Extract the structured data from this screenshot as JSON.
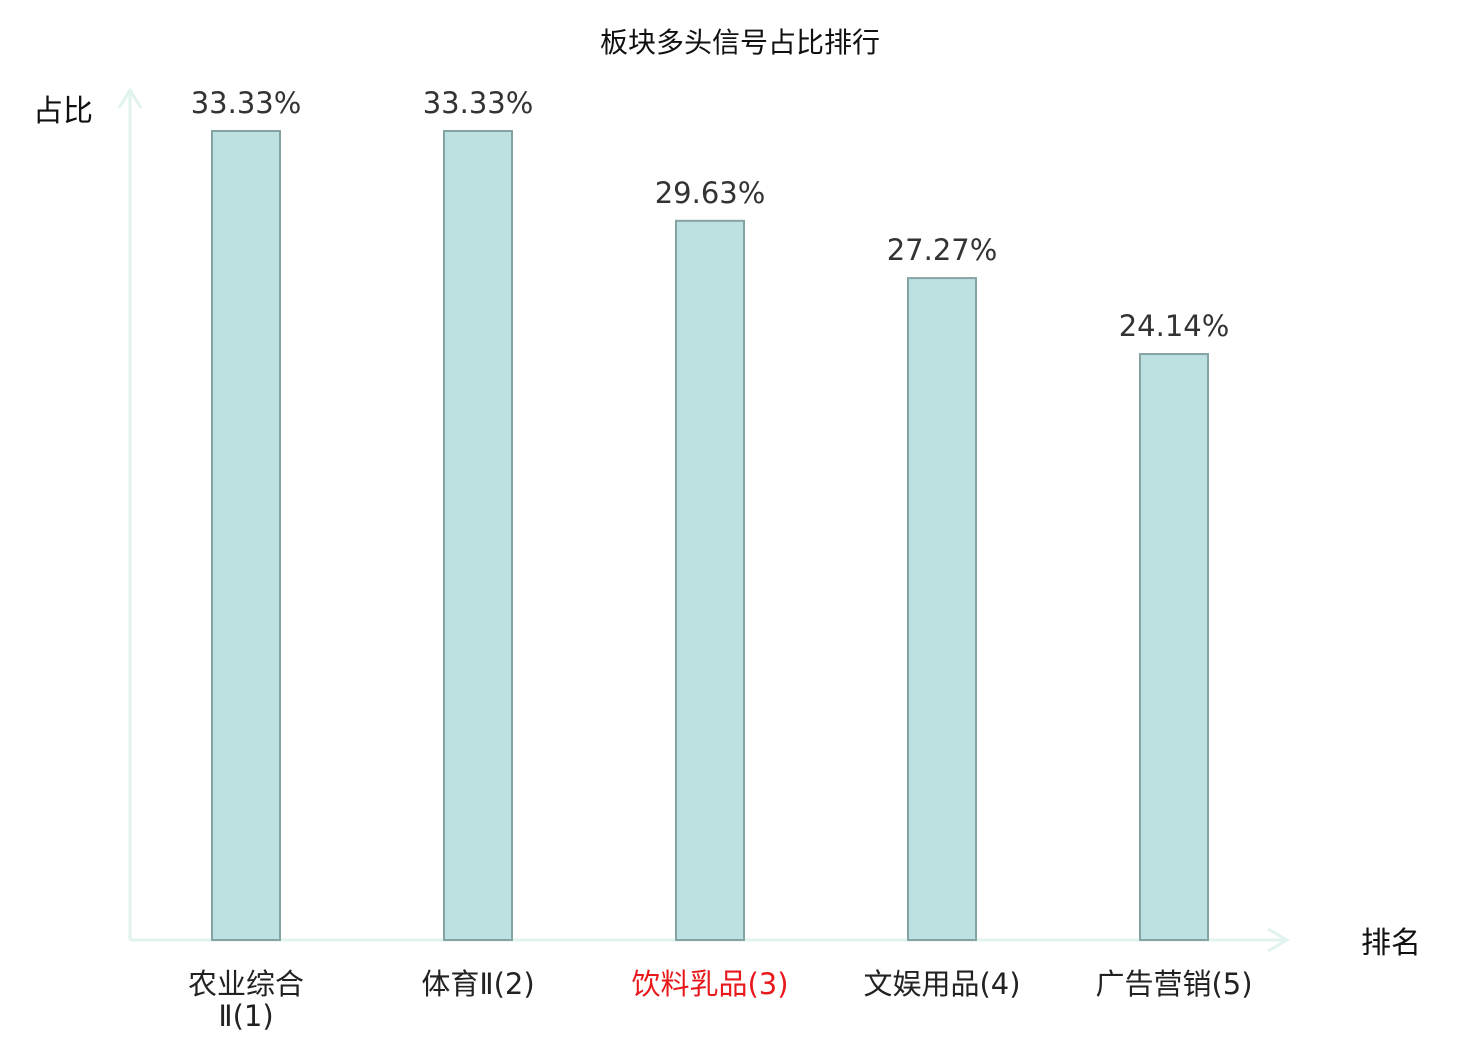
{
  "chart_data": {
    "type": "bar",
    "title": "板块多头信号占比排行",
    "ylabel": "占比",
    "xlabel": "排名",
    "categories": [
      [
        "农业综合",
        "Ⅱ(1)"
      ],
      [
        "体育Ⅱ(2)"
      ],
      [
        "饮料乳品(3)"
      ],
      [
        "文娱用品(4)"
      ],
      [
        "广告营销(5)"
      ]
    ],
    "values": [
      33.33,
      33.33,
      29.63,
      27.27,
      24.14
    ],
    "value_labels": [
      "33.33%",
      "33.33%",
      "29.63%",
      "27.27%",
      "24.14%"
    ],
    "ylim": [
      0,
      33.33
    ],
    "grid": false,
    "highlight_index": 2,
    "colors": {
      "bar_fill": "#bde0e1",
      "bar_stroke": "#86a3a3",
      "axis": "#e0f3ee",
      "label_default": "#222222",
      "label_highlight": "#e8191c",
      "value_text": "#333333"
    }
  }
}
